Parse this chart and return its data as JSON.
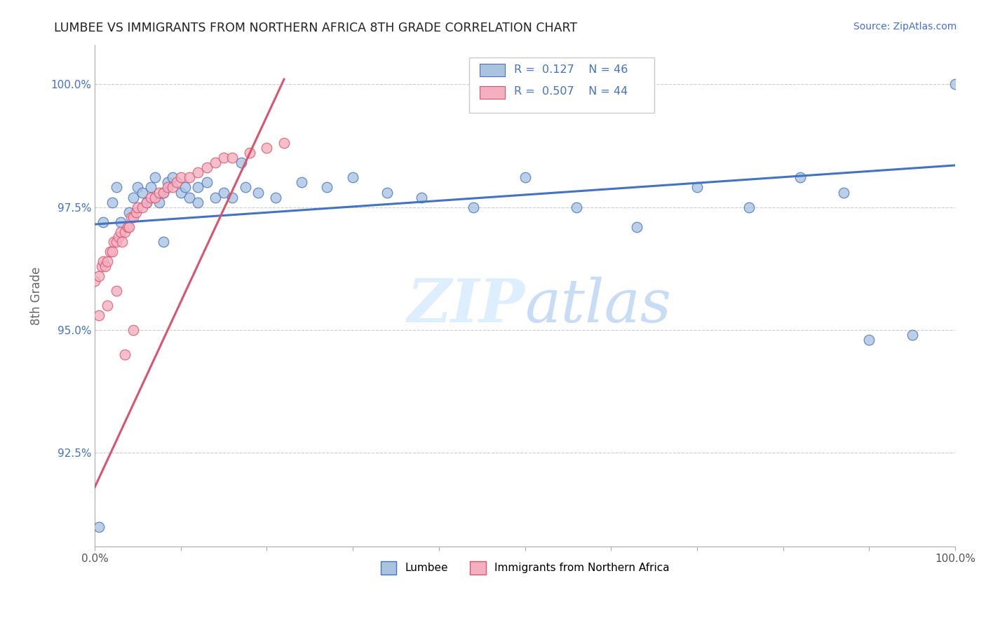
{
  "title": "LUMBEE VS IMMIGRANTS FROM NORTHERN AFRICA 8TH GRADE CORRELATION CHART",
  "source": "Source: ZipAtlas.com",
  "ylabel": "8th Grade",
  "xlim": [
    0.0,
    1.0
  ],
  "ylim": [
    0.906,
    1.008
  ],
  "ytick_positions": [
    0.925,
    0.9375,
    0.95,
    0.9625,
    0.975,
    0.9875,
    1.0
  ],
  "ytick_labels": [
    "92.5%",
    "",
    "95.0%",
    "",
    "97.5%",
    "",
    "100.0%"
  ],
  "xtick_positions": [
    0.0,
    0.1,
    0.2,
    0.3,
    0.4,
    0.5,
    0.6,
    0.7,
    0.8,
    0.9,
    1.0
  ],
  "xtick_labels": [
    "0.0%",
    "",
    "",
    "",
    "",
    "",
    "",
    "",
    "",
    "",
    "100.0%"
  ],
  "legend_labels": [
    "Lumbee",
    "Immigrants from Northern Africa"
  ],
  "blue_r": "0.127",
  "blue_n": "46",
  "pink_r": "0.507",
  "pink_n": "44",
  "blue_color": "#aac4e0",
  "pink_color": "#f4afc0",
  "blue_line_color": "#4472c4",
  "pink_line_color": "#d9546e",
  "blue_trend": [
    0.0,
    1.0,
    0.9715,
    0.9835
  ],
  "pink_trend_x0": 0.0,
  "pink_trend_x1": 0.22,
  "pink_trend_y0": 0.918,
  "pink_trend_y1": 1.001,
  "blue_scatter_x": [
    0.005,
    0.01,
    0.02,
    0.025,
    0.03,
    0.04,
    0.045,
    0.05,
    0.055,
    0.06,
    0.065,
    0.07,
    0.075,
    0.08,
    0.085,
    0.09,
    0.1,
    0.105,
    0.11,
    0.12,
    0.13,
    0.14,
    0.15,
    0.16,
    0.175,
    0.19,
    0.21,
    0.24,
    0.27,
    0.3,
    0.34,
    0.38,
    0.44,
    0.5,
    0.56,
    0.63,
    0.7,
    0.76,
    0.82,
    0.87,
    0.9,
    0.95,
    1.0,
    0.08,
    0.12,
    0.17
  ],
  "blue_scatter_y": [
    0.91,
    0.972,
    0.976,
    0.979,
    0.972,
    0.974,
    0.977,
    0.979,
    0.978,
    0.976,
    0.979,
    0.981,
    0.976,
    0.978,
    0.98,
    0.981,
    0.978,
    0.979,
    0.977,
    0.979,
    0.98,
    0.977,
    0.978,
    0.977,
    0.979,
    0.978,
    0.977,
    0.98,
    0.979,
    0.981,
    0.978,
    0.977,
    0.975,
    0.981,
    0.975,
    0.971,
    0.979,
    0.975,
    0.981,
    0.978,
    0.948,
    0.949,
    1.0,
    0.968,
    0.976,
    0.984
  ],
  "pink_scatter_x": [
    0.0,
    0.005,
    0.008,
    0.01,
    0.012,
    0.015,
    0.018,
    0.02,
    0.022,
    0.025,
    0.028,
    0.03,
    0.032,
    0.035,
    0.038,
    0.04,
    0.042,
    0.045,
    0.048,
    0.05,
    0.055,
    0.06,
    0.065,
    0.07,
    0.075,
    0.08,
    0.085,
    0.09,
    0.095,
    0.1,
    0.11,
    0.12,
    0.13,
    0.14,
    0.15,
    0.16,
    0.18,
    0.2,
    0.22,
    0.005,
    0.015,
    0.025,
    0.035,
    0.045
  ],
  "pink_scatter_y": [
    0.96,
    0.961,
    0.963,
    0.964,
    0.963,
    0.964,
    0.966,
    0.966,
    0.968,
    0.968,
    0.969,
    0.97,
    0.968,
    0.97,
    0.971,
    0.971,
    0.973,
    0.973,
    0.974,
    0.975,
    0.975,
    0.976,
    0.977,
    0.977,
    0.978,
    0.978,
    0.979,
    0.979,
    0.98,
    0.981,
    0.981,
    0.982,
    0.983,
    0.984,
    0.985,
    0.985,
    0.986,
    0.987,
    0.988,
    0.953,
    0.955,
    0.958,
    0.945,
    0.95
  ]
}
